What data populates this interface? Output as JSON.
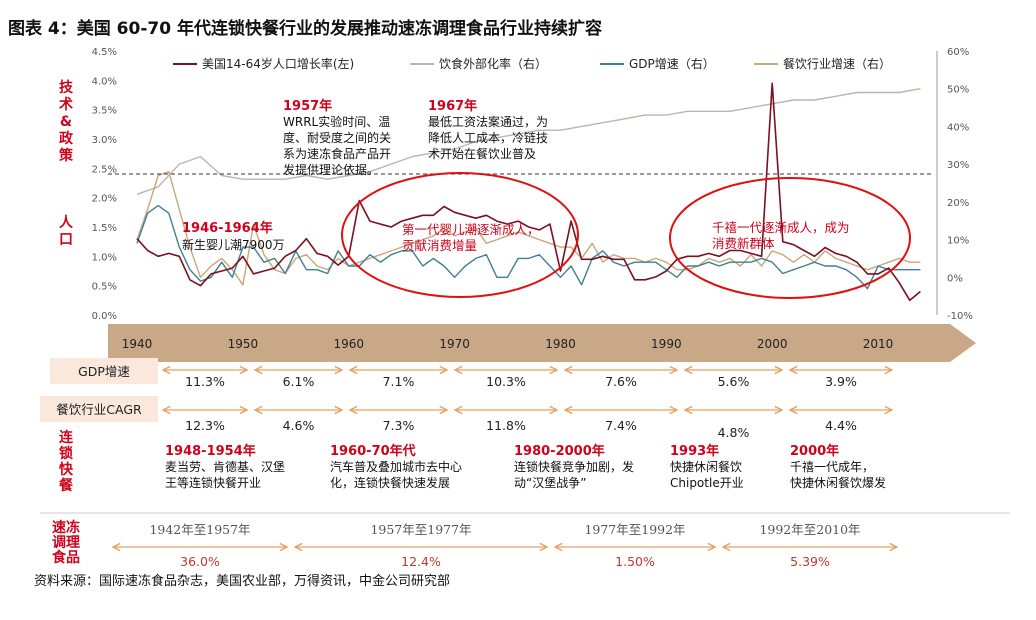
{
  "title": "图表 4：美国 60-70 年代连锁快餐行业的发展推动速冻调理食品行业持续扩容",
  "source": "资料来源：国际速冻食品杂志，美国农业部，万得资讯，中金公司研究部",
  "colors": {
    "population": "#7b1020",
    "away": "#b8b8a8",
    "gdp": "#3f7f93",
    "restaurant": "#c8a878",
    "accent_red": "#d0021b",
    "arrow_bar": "#c9a887",
    "arrow_orange": "#e8a060"
  },
  "row_labels": {
    "tech": "技术&政策",
    "population": "人口",
    "chain": "连锁快餐",
    "frozen": "速冻调理食品"
  },
  "rows": {
    "gdp_label": "GDP增速",
    "gdp_rates": [
      "11.3%",
      "6.1%",
      "7.1%",
      "10.3%",
      "7.6%",
      "5.6%",
      "3.9%"
    ],
    "rest_label": "餐饮行业CAGR",
    "rest_rates": [
      "12.3%",
      "4.6%",
      "7.3%",
      "11.8%",
      "7.4%",
      "4.8%",
      "4.4%"
    ],
    "frozen_periods": [
      "1942年至1957年",
      "1957年至1977年",
      "1977年至1992年",
      "1992年至2010年"
    ],
    "frozen_rates": [
      "36.0%",
      "12.4%",
      "1.50%",
      "5.39%"
    ]
  },
  "annotations": {
    "a1957": {
      "year": "1957年",
      "lines": [
        "WRRL实验时间、温",
        "度、耐受度之间的关",
        "系为速冻食品产品开",
        "发提供理论依据。"
      ]
    },
    "a1967": {
      "year": "1967年",
      "lines": [
        "最低工资法案通过，为",
        "降低人工成本，冷链技",
        "术开始在餐饮业普及"
      ]
    },
    "a1946": {
      "year": "1946-1964年",
      "lines": [
        "新生婴儿潮7900万"
      ]
    },
    "boom1": {
      "lines": [
        "第一代婴儿潮逐渐成人，",
        "贡献消费增量"
      ]
    },
    "boom2": {
      "lines": [
        "千禧一代逐渐成人，成为",
        "消费新群体"
      ]
    },
    "c1948": {
      "year": "1948-1954年",
      "lines": [
        "麦当劳、肯德基、汉堡",
        "王等连锁快餐开业"
      ]
    },
    "c1960": {
      "year": "1960-70年代",
      "lines": [
        "汽车普及叠加城市去中心",
        "化，连锁快餐快速发展"
      ]
    },
    "c1980": {
      "year": "1980-2000年",
      "lines": [
        "连锁快餐竞争加剧，发",
        "动“汉堡战争”"
      ]
    },
    "c1993": {
      "year": "1993年",
      "lines": [
        "快捷休闲餐饮",
        "Chipotle开业"
      ]
    },
    "c2000": {
      "year": "2000年",
      "lines": [
        "千禧一代成年，",
        "快捷休闲餐饮爆发"
      ]
    }
  },
  "chart_data": {
    "type": "line",
    "title": "",
    "x_ticks": [
      "1940",
      "1950",
      "1960",
      "1970",
      "1980",
      "1990",
      "2000",
      "2010"
    ],
    "xlim": [
      1940,
      2015
    ],
    "y_left": {
      "ylim": [
        0,
        4.5
      ],
      "ticks": [
        "0.0%",
        "0.5%",
        "1.0%",
        "1.5%",
        "2.0%",
        "2.5%",
        "3.0%",
        "3.5%",
        "4.0%",
        "4.5%"
      ]
    },
    "y_right": {
      "ylim": [
        -10,
        60
      ],
      "ticks": [
        "-10%",
        "0%",
        "10%",
        "20%",
        "30%",
        "40%",
        "50%",
        "60%"
      ]
    },
    "legend_position": "top",
    "series": [
      {
        "name": "美国14-64岁人口增长率(左)",
        "axis": "left",
        "x": [
          1940,
          1941,
          1942,
          1943,
          1944,
          1945,
          1946,
          1947,
          1948,
          1949,
          1950,
          1951,
          1952,
          1953,
          1954,
          1955,
          1956,
          1957,
          1958,
          1959,
          1960,
          1961,
          1962,
          1963,
          1964,
          1965,
          1966,
          1967,
          1968,
          1969,
          1970,
          1971,
          1972,
          1973,
          1974,
          1975,
          1976,
          1977,
          1978,
          1979,
          1980,
          1981,
          1982,
          1983,
          1984,
          1985,
          1986,
          1987,
          1988,
          1989,
          1990,
          1991,
          1992,
          1993,
          1994,
          1995,
          1996,
          1997,
          1998,
          1999,
          2000,
          2001,
          2002,
          2003,
          2004,
          2005,
          2006,
          2007,
          2008,
          2009,
          2010,
          2011,
          2012,
          2013,
          2014
        ],
        "y": [
          1.3,
          1.1,
          1.0,
          1.05,
          1.0,
          0.6,
          0.5,
          0.7,
          0.75,
          0.8,
          1.0,
          0.7,
          0.75,
          0.8,
          1.0,
          1.1,
          1.3,
          1.05,
          1.0,
          0.85,
          1.0,
          1.95,
          1.6,
          1.55,
          1.5,
          1.6,
          1.65,
          1.7,
          1.7,
          1.85,
          1.75,
          1.7,
          1.65,
          1.7,
          1.6,
          1.55,
          1.6,
          1.5,
          1.45,
          1.55,
          0.75,
          1.6,
          0.95,
          0.95,
          1.0,
          0.95,
          0.95,
          0.6,
          0.6,
          0.65,
          0.75,
          0.95,
          1.0,
          1.0,
          1.05,
          1.0,
          1.1,
          1.1,
          1.05,
          1.0,
          3.95,
          1.25,
          1.2,
          1.1,
          1.0,
          1.15,
          1.05,
          1.0,
          0.9,
          0.7,
          0.7,
          0.8,
          0.55,
          0.25,
          0.4
        ]
      },
      {
        "name": "饮食外部化率（右）",
        "axis": "right",
        "x": [
          1940,
          1942,
          1944,
          1946,
          1948,
          1950,
          1952,
          1954,
          1956,
          1958,
          1960,
          1962,
          1964,
          1966,
          1968,
          1970,
          1972,
          1974,
          1976,
          1978,
          1980,
          1982,
          1984,
          1986,
          1988,
          1990,
          1992,
          1994,
          1996,
          1998,
          2000,
          2002,
          2004,
          2006,
          2008,
          2010,
          2012,
          2014
        ],
        "y": [
          22,
          24,
          30,
          32,
          27,
          26,
          26,
          26,
          27,
          26,
          27,
          28,
          30,
          32,
          33,
          34,
          36,
          37,
          38,
          39,
          39,
          40,
          41,
          42,
          43,
          43,
          44,
          44,
          44,
          45,
          46,
          47,
          47,
          48,
          49,
          49,
          49,
          50
        ]
      },
      {
        "name": "GDP增速（右）",
        "axis": "right",
        "x": [
          1940,
          1941,
          1942,
          1943,
          1944,
          1945,
          1946,
          1947,
          1948,
          1949,
          1950,
          1951,
          1952,
          1953,
          1954,
          1955,
          1956,
          1957,
          1958,
          1959,
          1960,
          1961,
          1962,
          1963,
          1964,
          1965,
          1966,
          1967,
          1968,
          1969,
          1970,
          1971,
          1972,
          1973,
          1974,
          1975,
          1976,
          1977,
          1978,
          1979,
          1980,
          1981,
          1982,
          1983,
          1984,
          1985,
          1986,
          1987,
          1988,
          1989,
          1990,
          1991,
          1992,
          1993,
          1994,
          1995,
          1996,
          1997,
          1998,
          1999,
          2000,
          2001,
          2002,
          2003,
          2004,
          2005,
          2006,
          2007,
          2008,
          2009,
          2010,
          2011,
          2012,
          2013,
          2014
        ],
        "y": [
          9,
          17,
          19,
          17,
          8,
          2,
          -1,
          0,
          4,
          0,
          8,
          8,
          4,
          5,
          1,
          7,
          2,
          2,
          1,
          7,
          3,
          3,
          6,
          4,
          6,
          7,
          7,
          3,
          5,
          3,
          0,
          3,
          5,
          6,
          0,
          0,
          5,
          5,
          6,
          3,
          0,
          3,
          -2,
          5,
          7,
          4,
          3,
          4,
          4,
          4,
          2,
          0,
          3,
          3,
          4,
          3,
          4,
          4,
          4,
          5,
          4,
          1,
          2,
          3,
          4,
          3,
          3,
          2,
          0,
          -3,
          3,
          2,
          2,
          2,
          2
        ]
      },
      {
        "name": "餐饮行业增速（右）",
        "axis": "right",
        "x": [
          1940,
          1941,
          1942,
          1943,
          1944,
          1945,
          1946,
          1947,
          1948,
          1949,
          1950,
          1951,
          1952,
          1953,
          1954,
          1955,
          1956,
          1957,
          1958,
          1959,
          1960,
          1961,
          1962,
          1963,
          1964,
          1965,
          1966,
          1967,
          1968,
          1969,
          1970,
          1971,
          1972,
          1973,
          1974,
          1975,
          1976,
          1977,
          1978,
          1979,
          1980,
          1981,
          1982,
          1983,
          1984,
          1985,
          1986,
          1987,
          1988,
          1989,
          1990,
          1991,
          1992,
          1993,
          1994,
          1995,
          1996,
          1997,
          1998,
          1999,
          2000,
          2001,
          2002,
          2003,
          2004,
          2005,
          2006,
          2007,
          2008,
          2009,
          2010,
          2011,
          2012,
          2013,
          2014
        ],
        "y": [
          10,
          18,
          27,
          28,
          18,
          8,
          0,
          3,
          5,
          2,
          -2,
          14,
          6,
          2,
          1,
          5,
          6,
          3,
          2,
          5,
          3,
          4,
          5,
          6,
          7,
          8,
          9,
          10,
          11,
          13,
          11,
          12,
          13,
          9,
          10,
          11,
          12,
          11,
          10,
          9,
          8,
          8,
          5,
          9,
          4,
          6,
          5,
          5,
          4,
          5,
          4,
          2,
          2,
          3,
          5,
          4,
          5,
          3,
          6,
          3,
          7,
          6,
          4,
          6,
          4,
          7,
          5,
          4,
          3,
          2,
          3,
          4,
          5,
          4,
          4
        ]
      }
    ]
  }
}
